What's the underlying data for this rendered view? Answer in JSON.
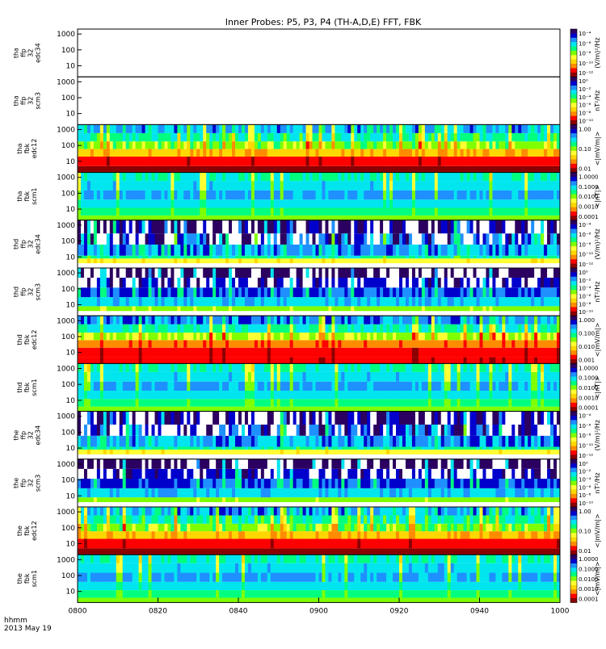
{
  "title": "Inner Probes: P5, P3, P4 (TH-A,D,E) FFT, FBK",
  "time_axis": {
    "ticks": [
      "0800",
      "0820",
      "0840",
      "0900",
      "0920",
      "0940",
      "1000"
    ],
    "hhmm_label": "hhmm",
    "date_label": "2013 May 19"
  },
  "y_ticks": [
    "1000",
    "100",
    "10"
  ],
  "colors": {
    "colormap": [
      "#8b0000",
      "#ff0000",
      "#ff8c00",
      "#ffd700",
      "#ffff33",
      "#7fff00",
      "#00ff7f",
      "#00e5ee",
      "#1e90ff",
      "#0000cd",
      "#2b0060"
    ]
  },
  "chart_data": [
    {
      "type": "heatmap",
      "ylabel_lines": [
        "tha",
        "ffp",
        "32",
        "edc34"
      ],
      "units": "(V/m)²/Hz",
      "cb_ticks": [
        "10⁻⁴",
        "10⁻⁶",
        "10⁻⁸",
        "10⁻¹⁰",
        "10⁻¹²"
      ],
      "yrange_hz": [
        4,
        2048
      ],
      "ylog": true,
      "pattern": "empty"
    },
    {
      "type": "heatmap",
      "ylabel_lines": [
        "tha",
        "ffp",
        "32",
        "scm3"
      ],
      "units": "nT²/Hz",
      "cb_ticks": [
        "10⁰",
        "10⁻²",
        "10⁻⁴",
        "10⁻⁶",
        "10⁻⁸",
        "10⁻¹⁰"
      ],
      "yrange_hz": [
        4,
        2048
      ],
      "ylog": true,
      "pattern": "empty"
    },
    {
      "type": "heatmap",
      "ylabel_lines": [
        "tha",
        "fbk",
        "edc12"
      ],
      "units": "<|mV/m|>",
      "cb_ticks": [
        "1.00",
        "0.10",
        "0.01"
      ],
      "yrange_hz": [
        2,
        2048
      ],
      "ylog": true,
      "pattern": "fbk_e"
    },
    {
      "type": "heatmap",
      "ylabel_lines": [
        "tha",
        "fbk",
        "scm1"
      ],
      "units": "<|nT|>",
      "cb_ticks": [
        "1.0000",
        "0.1000",
        "0.0100",
        "0.0010",
        "0.0001"
      ],
      "yrange_hz": [
        2,
        2048
      ],
      "ylog": true,
      "pattern": "fbk_b"
    },
    {
      "type": "heatmap",
      "ylabel_lines": [
        "thd",
        "ffp",
        "32",
        "edc34"
      ],
      "units": "(V/m)²/Hz",
      "cb_ticks": [
        "10⁻⁴",
        "10⁻⁶",
        "10⁻⁸",
        "10⁻¹⁰",
        "10⁻¹²"
      ],
      "yrange_hz": [
        4,
        2048
      ],
      "ylog": true,
      "pattern": "ffp_e"
    },
    {
      "type": "heatmap",
      "ylabel_lines": [
        "thd",
        "ffp",
        "32",
        "scm3"
      ],
      "units": "nT²/Hz",
      "cb_ticks": [
        "10⁰",
        "10⁻²",
        "10⁻⁴",
        "10⁻⁶",
        "10⁻⁸",
        "10⁻¹⁰"
      ],
      "yrange_hz": [
        4,
        2048
      ],
      "ylog": true,
      "pattern": "ffp_b"
    },
    {
      "type": "heatmap",
      "ylabel_lines": [
        "thd",
        "fbk",
        "edc12"
      ],
      "units": "<|mV/m|>",
      "cb_ticks": [
        "1.000",
        "0.100",
        "0.010",
        "0.001"
      ],
      "yrange_hz": [
        2,
        2048
      ],
      "ylog": true,
      "pattern": "fbk_e2"
    },
    {
      "type": "heatmap",
      "ylabel_lines": [
        "thd",
        "fbk",
        "scm1"
      ],
      "units": "<|nT|>",
      "cb_ticks": [
        "1.0000",
        "0.1000",
        "0.0100",
        "0.0010",
        "0.0001"
      ],
      "yrange_hz": [
        2,
        2048
      ],
      "ylog": true,
      "pattern": "fbk_b"
    },
    {
      "type": "heatmap",
      "ylabel_lines": [
        "the",
        "ffp",
        "32",
        "edc34"
      ],
      "units": "(V/m)²/Hz",
      "cb_ticks": [
        "10⁻⁴",
        "10⁻⁶",
        "10⁻⁸",
        "10⁻¹⁰",
        "10⁻¹²"
      ],
      "yrange_hz": [
        4,
        2048
      ],
      "ylog": true,
      "pattern": "ffp_e"
    },
    {
      "type": "heatmap",
      "ylabel_lines": [
        "the",
        "ffp",
        "32",
        "scm3"
      ],
      "units": "nT²/Hz",
      "cb_ticks": [
        "10⁰",
        "10⁻²",
        "10⁻⁴",
        "10⁻⁶",
        "10⁻⁸",
        "10⁻¹⁰"
      ],
      "yrange_hz": [
        4,
        2048
      ],
      "ylog": true,
      "pattern": "ffp_b"
    },
    {
      "type": "heatmap",
      "ylabel_lines": [
        "the",
        "fbk",
        "edc12"
      ],
      "units": "<|mV/m|>",
      "cb_ticks": [
        "1.00",
        "0.10",
        "0.01"
      ],
      "yrange_hz": [
        2,
        2048
      ],
      "ylog": true,
      "pattern": "fbk_e"
    },
    {
      "type": "heatmap",
      "ylabel_lines": [
        "the",
        "fbk",
        "scm1"
      ],
      "units": "<|mV/m|>",
      "cb_ticks": [
        "1.0000",
        "0.1000",
        "0.0100",
        "0.0010",
        "0.0001"
      ],
      "yrange_hz": [
        2,
        2048
      ],
      "ylog": true,
      "pattern": "fbk_b"
    }
  ]
}
